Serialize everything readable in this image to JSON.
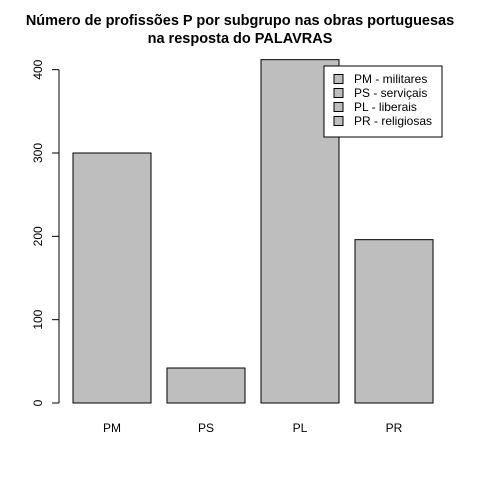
{
  "chart_data": {
    "type": "bar",
    "title": "Número de profissões P por subgrupo nas obras portuguesas",
    "subtitle": "na resposta do PALAVRAS",
    "xlabel": "",
    "ylabel": "",
    "categories": [
      "PM",
      "PS",
      "PL",
      "PR"
    ],
    "values": [
      300,
      42,
      412,
      196
    ],
    "ylim": [
      0,
      400
    ],
    "yticks": [
      0,
      100,
      200,
      300,
      400
    ],
    "grid": false,
    "legend": {
      "placement": "top-right",
      "entries": [
        "PM - militares",
        "PS - serviçais",
        "PL - liberais",
        "PR - religiosas"
      ]
    },
    "colors": {
      "bar_fill": "#bebebe",
      "bar_stroke": "#000000",
      "legend_frame": "#000000"
    }
  }
}
